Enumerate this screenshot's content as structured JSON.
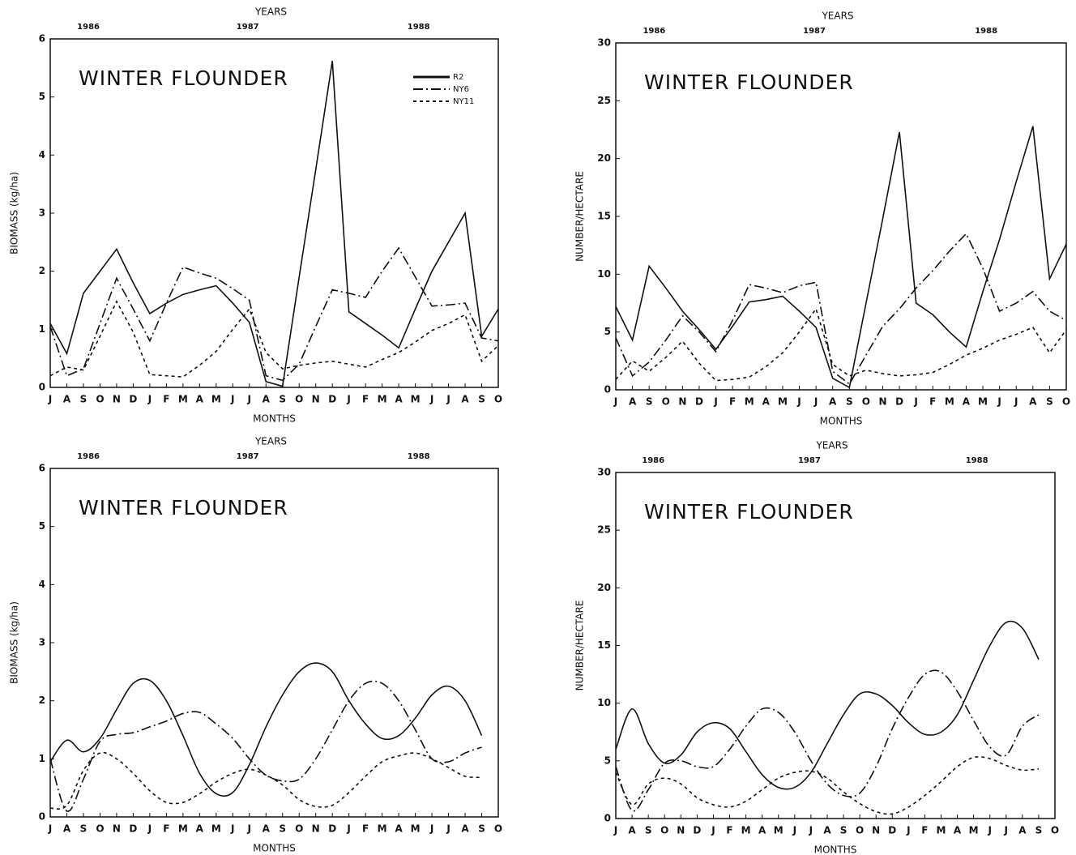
{
  "chart_data": [
    {
      "type": "line",
      "title": "WINTER FLOUNDER",
      "xlabel": "MONTHS",
      "ylabel": "BIOMASS (kg/ha)",
      "top_axis": {
        "label": "YEARS",
        "ticks": [
          "1986",
          "1987",
          "1988"
        ]
      },
      "categories": [
        "J",
        "A",
        "S",
        "O",
        "N",
        "D",
        "J",
        "F",
        "M",
        "A",
        "M",
        "J",
        "J",
        "A",
        "S",
        "O",
        "N",
        "D",
        "J",
        "F",
        "M",
        "A",
        "M",
        "J",
        "J",
        "A",
        "S",
        "O"
      ],
      "ylim": [
        0,
        6
      ],
      "yticks": [
        0,
        1,
        2,
        3,
        4,
        5,
        6
      ],
      "legend": "upper right",
      "smooth": false,
      "series": [
        {
          "name": "R2",
          "color": "#111111",
          "linestyle": "solid",
          "values": [
            1.1,
            0.58,
            1.62,
            2.0,
            2.38,
            1.8,
            1.27,
            1.45,
            1.6,
            1.68,
            1.75,
            1.45,
            1.12,
            0.1,
            0.02,
            1.9,
            3.75,
            5.62,
            1.3,
            1.1,
            0.9,
            0.68,
            1.35,
            2.0,
            2.5,
            3.0,
            0.88,
            1.35
          ]
        },
        {
          "name": "NY6",
          "color": "#111111",
          "linestyle": "dashdot",
          "values": [
            1.05,
            0.2,
            0.32,
            1.1,
            1.88,
            1.35,
            0.8,
            1.45,
            2.07,
            1.97,
            1.88,
            1.7,
            1.5,
            0.2,
            0.12,
            0.4,
            1.05,
            1.68,
            1.62,
            1.55,
            2.0,
            2.4,
            1.9,
            1.4,
            1.42,
            1.45,
            0.85,
            0.8
          ]
        },
        {
          "name": "NY11",
          "color": "#111111",
          "linestyle": "dotted",
          "values": [
            0.2,
            0.35,
            0.3,
            0.88,
            1.48,
            0.95,
            0.22,
            0.2,
            0.18,
            0.38,
            0.62,
            1.0,
            1.35,
            0.6,
            0.32,
            0.38,
            0.42,
            0.45,
            0.4,
            0.35,
            0.48,
            0.6,
            0.78,
            0.98,
            1.1,
            1.25,
            0.45,
            0.72
          ]
        }
      ]
    },
    {
      "type": "line",
      "title": "WINTER FLOUNDER",
      "xlabel": "MONTHS",
      "ylabel": "NUMBER/HECTARE",
      "top_axis": {
        "label": "YEARS",
        "ticks": [
          "1986",
          "1987",
          "1988"
        ]
      },
      "categories": [
        "J",
        "A",
        "S",
        "O",
        "N",
        "D",
        "J",
        "F",
        "M",
        "A",
        "M",
        "J",
        "J",
        "A",
        "S",
        "O",
        "N",
        "D",
        "J",
        "F",
        "M",
        "A",
        "M",
        "J",
        "J",
        "A",
        "S",
        "O"
      ],
      "ylim": [
        0,
        30
      ],
      "yticks": [
        0,
        5,
        10,
        15,
        20,
        25,
        30
      ],
      "smooth": false,
      "series": [
        {
          "color": "#111111",
          "linestyle": "solid",
          "values": [
            7.2,
            4.3,
            10.7,
            8.8,
            6.8,
            5.2,
            3.5,
            5.5,
            7.6,
            7.8,
            8.1,
            6.8,
            5.4,
            1.0,
            0.2,
            7.5,
            14.8,
            22.3,
            7.5,
            6.5,
            5.0,
            3.7,
            8.5,
            13.0,
            18.0,
            22.8,
            9.6,
            12.6
          ]
        },
        {
          "color": "#111111",
          "linestyle": "dashdot",
          "values": [
            4.5,
            1.2,
            2.4,
            4.3,
            6.4,
            5.0,
            3.3,
            6.0,
            9.1,
            8.8,
            8.4,
            9.0,
            9.3,
            1.6,
            0.5,
            3.0,
            5.5,
            7.0,
            8.8,
            10.3,
            12.0,
            13.5,
            10.5,
            6.8,
            7.5,
            8.5,
            6.8,
            6.0
          ]
        },
        {
          "color": "#111111",
          "linestyle": "dotted",
          "values": [
            0.9,
            2.5,
            1.6,
            2.8,
            4.2,
            2.3,
            0.8,
            0.9,
            1.1,
            2.0,
            3.2,
            5.0,
            7.0,
            2.2,
            1.2,
            1.7,
            1.4,
            1.2,
            1.3,
            1.5,
            2.2,
            3.0,
            3.6,
            4.3,
            4.8,
            5.4,
            3.2,
            5.2
          ]
        }
      ]
    },
    {
      "type": "line",
      "title": "WINTER FLOUNDER",
      "xlabel": "MONTHS",
      "ylabel": "BIOMASS (kg/ha)",
      "top_axis": {
        "label": "YEARS",
        "ticks": [
          "1986",
          "1987",
          "1988"
        ]
      },
      "categories": [
        "J",
        "A",
        "S",
        "O",
        "N",
        "D",
        "J",
        "F",
        "M",
        "A",
        "M",
        "J",
        "J",
        "A",
        "S",
        "O",
        "N",
        "D",
        "J",
        "F",
        "M",
        "A",
        "M",
        "J",
        "J",
        "A",
        "S",
        "O"
      ],
      "ylim": [
        0,
        6
      ],
      "yticks": [
        0,
        1,
        2,
        3,
        4,
        5,
        6
      ],
      "smooth": true,
      "series": [
        {
          "color": "#111111",
          "linestyle": "solid",
          "values": [
            0.95,
            1.32,
            1.12,
            1.35,
            1.85,
            2.3,
            2.35,
            2.0,
            1.4,
            0.75,
            0.4,
            0.42,
            0.9,
            1.55,
            2.1,
            2.5,
            2.65,
            2.5,
            2.0,
            1.6,
            1.35,
            1.4,
            1.7,
            2.1,
            2.25,
            2.0,
            1.4,
            null
          ]
        },
        {
          "color": "#111111",
          "linestyle": "dashdot",
          "values": [
            1.0,
            0.1,
            0.65,
            1.3,
            1.42,
            1.45,
            1.55,
            1.65,
            1.78,
            1.8,
            1.6,
            1.35,
            1.0,
            0.72,
            0.62,
            0.65,
            1.0,
            1.5,
            2.0,
            2.3,
            2.3,
            2.0,
            1.5,
            1.0,
            0.95,
            1.1,
            1.2,
            null
          ]
        },
        {
          "color": "#111111",
          "linestyle": "dotted",
          "values": [
            0.15,
            0.2,
            0.8,
            1.1,
            1.0,
            0.75,
            0.45,
            0.25,
            0.25,
            0.4,
            0.6,
            0.75,
            0.82,
            0.72,
            0.55,
            0.3,
            0.18,
            0.2,
            0.42,
            0.7,
            0.95,
            1.05,
            1.1,
            1.0,
            0.85,
            0.7,
            0.68,
            null
          ]
        }
      ]
    },
    {
      "type": "line",
      "title": "WINTER FLOUNDER",
      "xlabel": "MONTHS",
      "ylabel": "NUMBER/HECTARE",
      "top_axis": {
        "label": "YEARS",
        "ticks": [
          "1986",
          "1987",
          "1988"
        ]
      },
      "categories": [
        "J",
        "A",
        "S",
        "O",
        "N",
        "D",
        "J",
        "F",
        "M",
        "A",
        "M",
        "J",
        "J",
        "A",
        "S",
        "O",
        "N",
        "D",
        "J",
        "F",
        "M",
        "A",
        "M",
        "J",
        "J",
        "A",
        "S",
        "O"
      ],
      "ylim": [
        0,
        30
      ],
      "yticks": [
        0,
        5,
        10,
        15,
        20,
        25,
        30
      ],
      "smooth": true,
      "series": [
        {
          "color": "#111111",
          "linestyle": "solid",
          "values": [
            6.0,
            9.5,
            6.5,
            4.8,
            5.5,
            7.5,
            8.3,
            7.8,
            5.8,
            3.8,
            2.7,
            2.7,
            4.0,
            6.5,
            9.0,
            10.8,
            10.8,
            9.8,
            8.3,
            7.3,
            7.5,
            9.0,
            12.0,
            15.0,
            17.0,
            16.5,
            13.8,
            null
          ]
        },
        {
          "color": "#111111",
          "linestyle": "dashdot",
          "values": [
            4.5,
            0.7,
            2.5,
            4.8,
            5.0,
            4.5,
            4.5,
            6.0,
            8.0,
            9.5,
            9.2,
            7.5,
            5.0,
            3.0,
            2.0,
            2.2,
            4.5,
            7.8,
            10.5,
            12.5,
            12.7,
            11.0,
            8.5,
            6.2,
            5.5,
            8.0,
            9.0,
            null
          ]
        },
        {
          "color": "#111111",
          "linestyle": "dotted",
          "values": [
            4.0,
            1.2,
            3.0,
            3.5,
            3.0,
            1.8,
            1.2,
            1.0,
            1.5,
            2.5,
            3.5,
            4.0,
            4.1,
            3.5,
            2.3,
            1.3,
            0.6,
            0.4,
            1.0,
            2.0,
            3.2,
            4.5,
            5.3,
            5.2,
            4.6,
            4.2,
            4.3,
            null
          ]
        }
      ]
    }
  ]
}
